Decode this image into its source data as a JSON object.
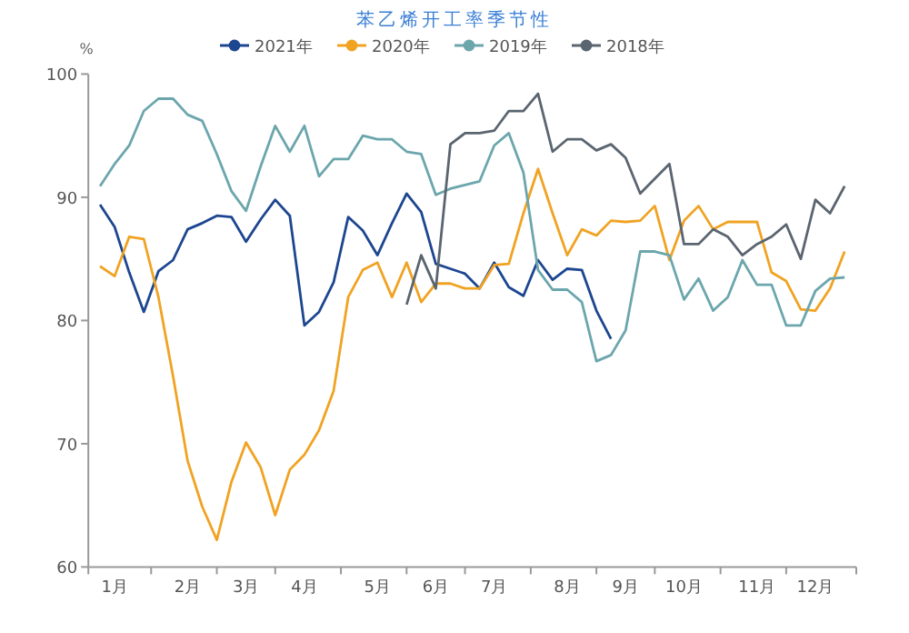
{
  "chart_data": {
    "type": "line",
    "title": "苯乙烯开工率季节性",
    "ylabel": "%",
    "legend": "top",
    "categories": [
      null,
      "1月",
      null,
      null,
      null,
      null,
      "2月",
      null,
      null,
      null,
      "3月",
      null,
      null,
      null,
      "4月",
      null,
      null,
      null,
      null,
      "5月",
      null,
      null,
      null,
      "6月",
      null,
      null,
      null,
      "7月",
      null,
      null,
      null,
      null,
      "8月",
      null,
      null,
      null,
      "9月",
      null,
      null,
      null,
      "10月",
      null,
      null,
      null,
      null,
      "11月",
      null,
      null,
      null,
      "12月",
      null,
      null
    ],
    "ylim": [
      60,
      100
    ],
    "yticks": [
      60,
      70,
      80,
      90,
      100
    ],
    "series": [
      {
        "name": "2021年",
        "color": "#1d4690",
        "values": [
          89.4,
          87.6,
          83.9,
          80.7,
          84.0,
          84.9,
          87.4,
          87.9,
          88.5,
          88.4,
          86.4,
          88.2,
          89.8,
          88.5,
          79.6,
          80.7,
          83.1,
          88.4,
          87.3,
          85.3,
          87.9,
          90.3,
          88.8,
          84.6,
          84.2,
          83.8,
          82.6,
          84.7,
          82.7,
          82.0,
          84.9,
          83.3,
          84.2,
          84.1,
          80.8,
          78.5,
          null,
          null,
          null,
          null,
          null,
          null,
          null,
          null,
          null,
          null,
          null,
          null,
          null,
          null,
          null,
          null
        ]
      },
      {
        "name": "2020年",
        "color": "#f0a323",
        "values": [
          84.4,
          83.6,
          86.8,
          86.6,
          81.9,
          75.5,
          68.6,
          64.9,
          62.2,
          66.9,
          70.1,
          68.1,
          64.2,
          67.9,
          69.1,
          71.1,
          74.3,
          81.9,
          84.1,
          84.7,
          81.9,
          84.7,
          81.5,
          83.0,
          83.0,
          82.6,
          82.6,
          84.5,
          84.6,
          88.7,
          92.3,
          88.7,
          85.3,
          87.4,
          86.9,
          88.1,
          88.0,
          88.1,
          89.3,
          84.9,
          88.1,
          89.3,
          87.4,
          88.0,
          88.0,
          88.0,
          83.9,
          83.2,
          80.9,
          80.8,
          82.6,
          85.6
        ]
      },
      {
        "name": "2019年",
        "color": "#6ca6ad",
        "values": [
          90.9,
          92.7,
          94.2,
          97.0,
          98.0,
          98.0,
          96.7,
          96.2,
          93.5,
          90.5,
          88.9,
          92.5,
          95.8,
          93.7,
          95.8,
          91.7,
          93.1,
          93.1,
          95.0,
          94.7,
          94.7,
          93.7,
          93.5,
          90.2,
          90.7,
          91.0,
          91.3,
          94.2,
          95.2,
          92.0,
          84.1,
          82.5,
          82.5,
          81.5,
          76.7,
          77.2,
          79.2,
          85.6,
          85.6,
          85.3,
          81.7,
          83.4,
          80.8,
          81.9,
          84.9,
          82.9,
          82.9,
          79.6,
          79.6,
          82.4,
          83.4,
          83.5
        ]
      },
      {
        "name": "2018年",
        "color": "#5a6570",
        "values": [
          null,
          null,
          null,
          null,
          null,
          null,
          null,
          null,
          null,
          null,
          null,
          null,
          null,
          null,
          null,
          null,
          null,
          null,
          null,
          null,
          null,
          81.3,
          85.3,
          82.6,
          94.3,
          95.2,
          95.2,
          95.4,
          97.0,
          97.0,
          98.4,
          93.7,
          94.7,
          94.7,
          93.8,
          94.3,
          93.2,
          90.3,
          91.5,
          92.7,
          86.2,
          86.2,
          87.4,
          86.8,
          85.3,
          86.2,
          86.8,
          87.8,
          85.0,
          89.8,
          88.7,
          90.9
        ]
      }
    ]
  }
}
